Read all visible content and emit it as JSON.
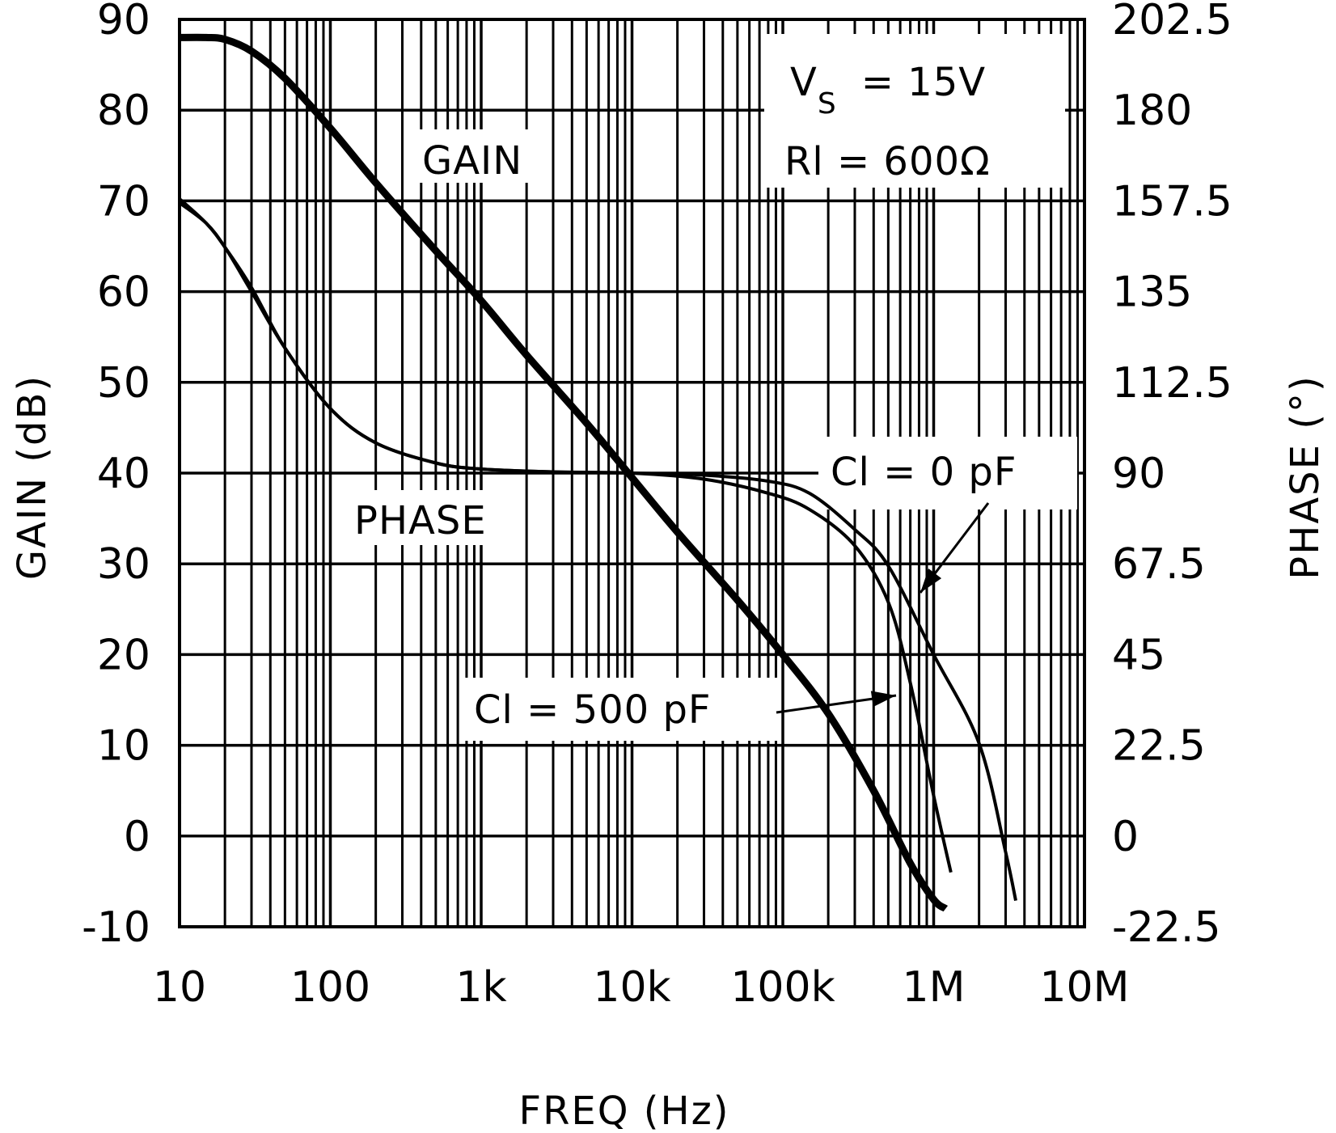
{
  "chart_data": {
    "type": "line",
    "xlabel": "FREQ (Hz)",
    "ylabel": "GAIN (dB)",
    "y2label": "PHASE (°)",
    "xscale": "log",
    "xlim": [
      10,
      10000000
    ],
    "ylim": [
      -10,
      90
    ],
    "y2lim": [
      -22.5,
      202.5
    ],
    "grid": true,
    "x_tick_values": [
      10,
      100,
      1000,
      10000,
      100000,
      1000000,
      10000000
    ],
    "x_tick_labels": [
      "10",
      "100",
      "1k",
      "10k",
      "100k",
      "1M",
      "10M"
    ],
    "y_tick_values": [
      -10,
      0,
      10,
      20,
      30,
      40,
      50,
      60,
      70,
      80,
      90
    ],
    "y_tick_labels": [
      "-10",
      "0",
      "10",
      "20",
      "30",
      "40",
      "50",
      "60",
      "70",
      "80",
      "90"
    ],
    "y2_tick_values": [
      -22.5,
      0,
      22.5,
      45,
      67.5,
      90,
      112.5,
      135,
      157.5,
      180,
      202.5
    ],
    "y2_tick_labels": [
      "-22.5",
      "0",
      "22.5",
      "45",
      "67.5",
      "90",
      "112.5",
      "135",
      "157.5",
      "180",
      "202.5"
    ],
    "annotations": {
      "gain_label": "GAIN",
      "phase_label": "PHASE",
      "vs_prefix": "V",
      "vs_sub": "S",
      "vs_value": "= 15V",
      "rl_text": "Rl = 600Ω",
      "cl0_text": "Cl = 0 pF",
      "cl500_text": "Cl = 500 pF"
    },
    "series": [
      {
        "name": "GAIN",
        "axis": "left",
        "width": "thick",
        "x": [
          10,
          15,
          20,
          30,
          50,
          100,
          200,
          500,
          1000,
          2000,
          5000,
          10000,
          20000,
          50000,
          100000,
          200000,
          400000,
          700000,
          1000000,
          1200000
        ],
        "y": [
          88,
          88,
          87.8,
          86.5,
          83.5,
          78,
          72,
          64.5,
          59,
          53,
          45.5,
          39.5,
          33.5,
          26,
          20,
          13.5,
          5,
          -3,
          -7,
          -8
        ]
      },
      {
        "name": "PHASE, Cl = 0 pF",
        "axis": "right",
        "width": "thin",
        "x": [
          10,
          15,
          20,
          30,
          50,
          100,
          200,
          500,
          1000,
          3000,
          10000,
          30000,
          80000,
          150000,
          300000,
          500000,
          1000000,
          2000000,
          3000000,
          3500000
        ],
        "y": [
          158,
          152,
          146,
          136,
          121,
          106,
          97.5,
          92.5,
          91,
          90.3,
          90,
          89.5,
          88,
          85,
          76,
          67,
          45,
          23,
          -4,
          -16
        ]
      },
      {
        "name": "PHASE, Cl = 500 pF",
        "axis": "right",
        "width": "thin",
        "x": [
          10,
          15,
          20,
          30,
          50,
          100,
          200,
          500,
          1000,
          3000,
          10000,
          30000,
          80000,
          150000,
          300000,
          500000,
          700000,
          1000000,
          1300000
        ],
        "y": [
          157,
          152,
          146,
          135,
          121,
          106,
          97.5,
          92.5,
          91,
          90.3,
          90,
          88.5,
          85,
          81,
          72,
          58,
          38,
          10,
          -9
        ]
      }
    ]
  }
}
